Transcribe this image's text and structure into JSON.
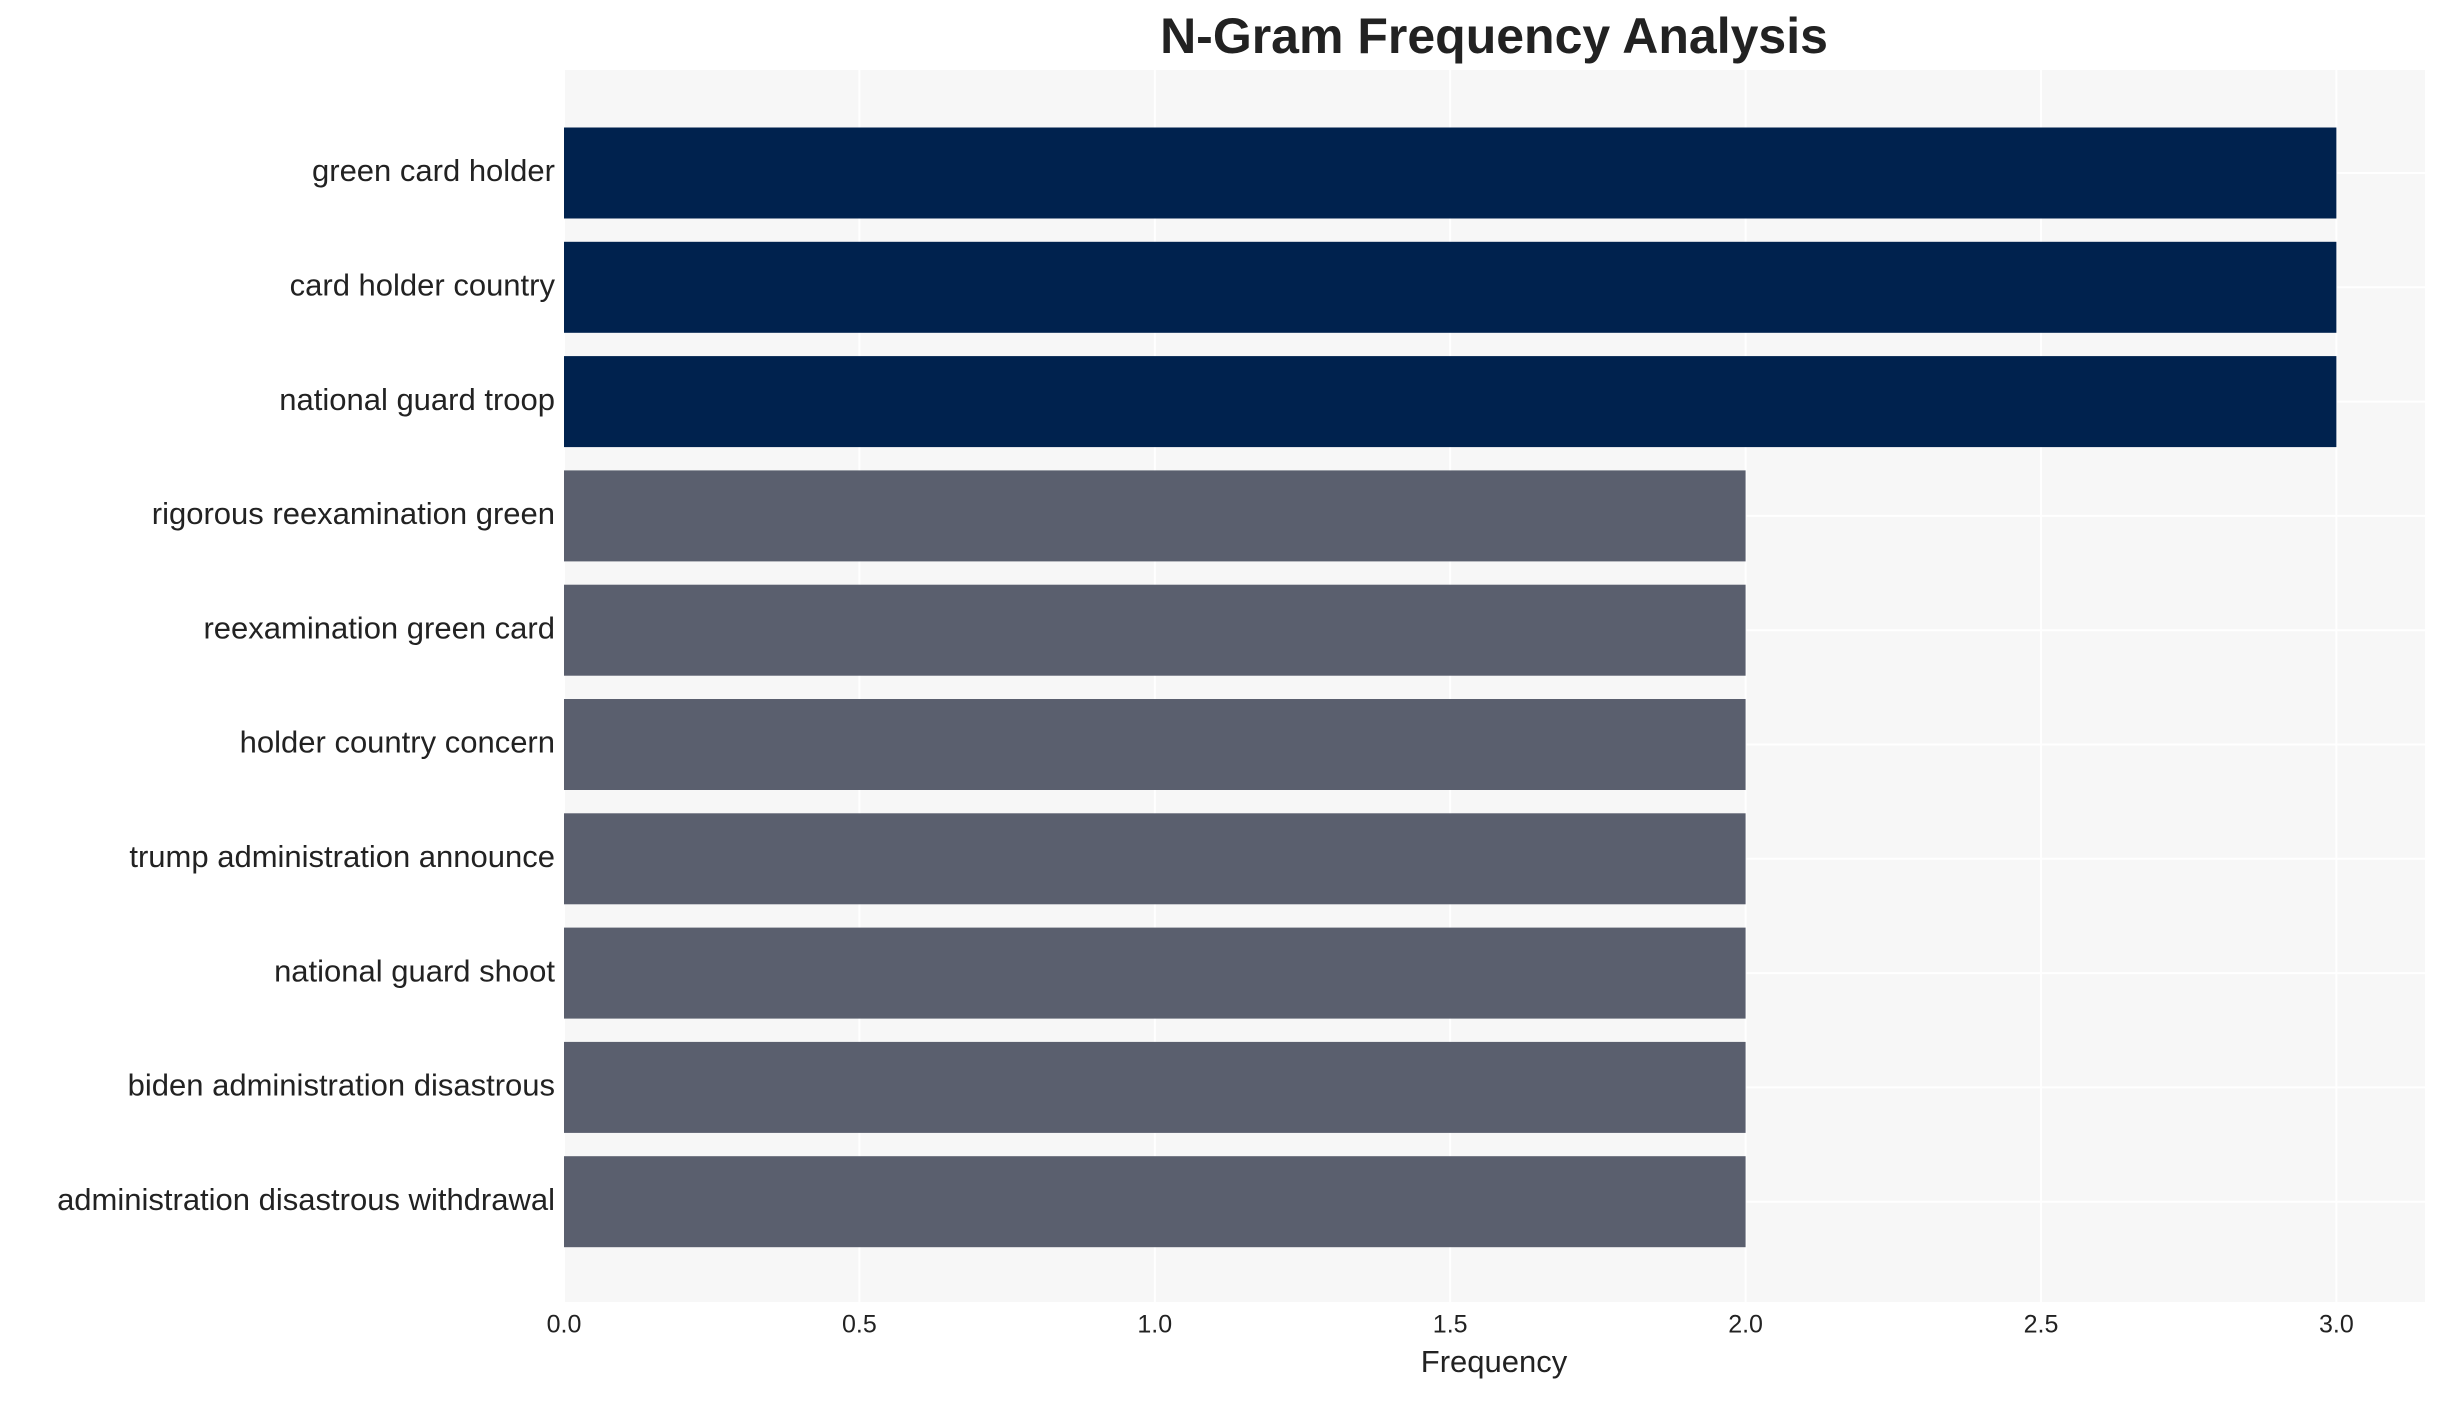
{
  "chart_data": {
    "type": "barh",
    "title": "N-Gram Frequency Analysis",
    "xlabel": "Frequency",
    "categories": [
      "green card holder",
      "card holder country",
      "national guard troop",
      "rigorous reexamination green",
      "reexamination green card",
      "holder country concern",
      "trump administration announce",
      "national guard shoot",
      "biden administration disastrous",
      "administration disastrous withdrawal"
    ],
    "values": [
      3,
      3,
      3,
      2,
      2,
      2,
      2,
      2,
      2,
      2
    ],
    "colors": [
      "#00224e",
      "#00224e",
      "#00224e",
      "#5a5f6e",
      "#5a5f6e",
      "#5a5f6e",
      "#5a5f6e",
      "#5a5f6e",
      "#5a5f6e",
      "#5a5f6e"
    ],
    "xlim": [
      0,
      3.15
    ],
    "xticks": [
      {
        "value": 0,
        "label": "0.0"
      },
      0.5,
      {
        "value": 1,
        "label": "1.0"
      },
      1.5,
      {
        "value": 2,
        "label": "2.0"
      },
      2.5,
      {
        "value": 3,
        "label": "3.0"
      }
    ],
    "grid": true
  }
}
